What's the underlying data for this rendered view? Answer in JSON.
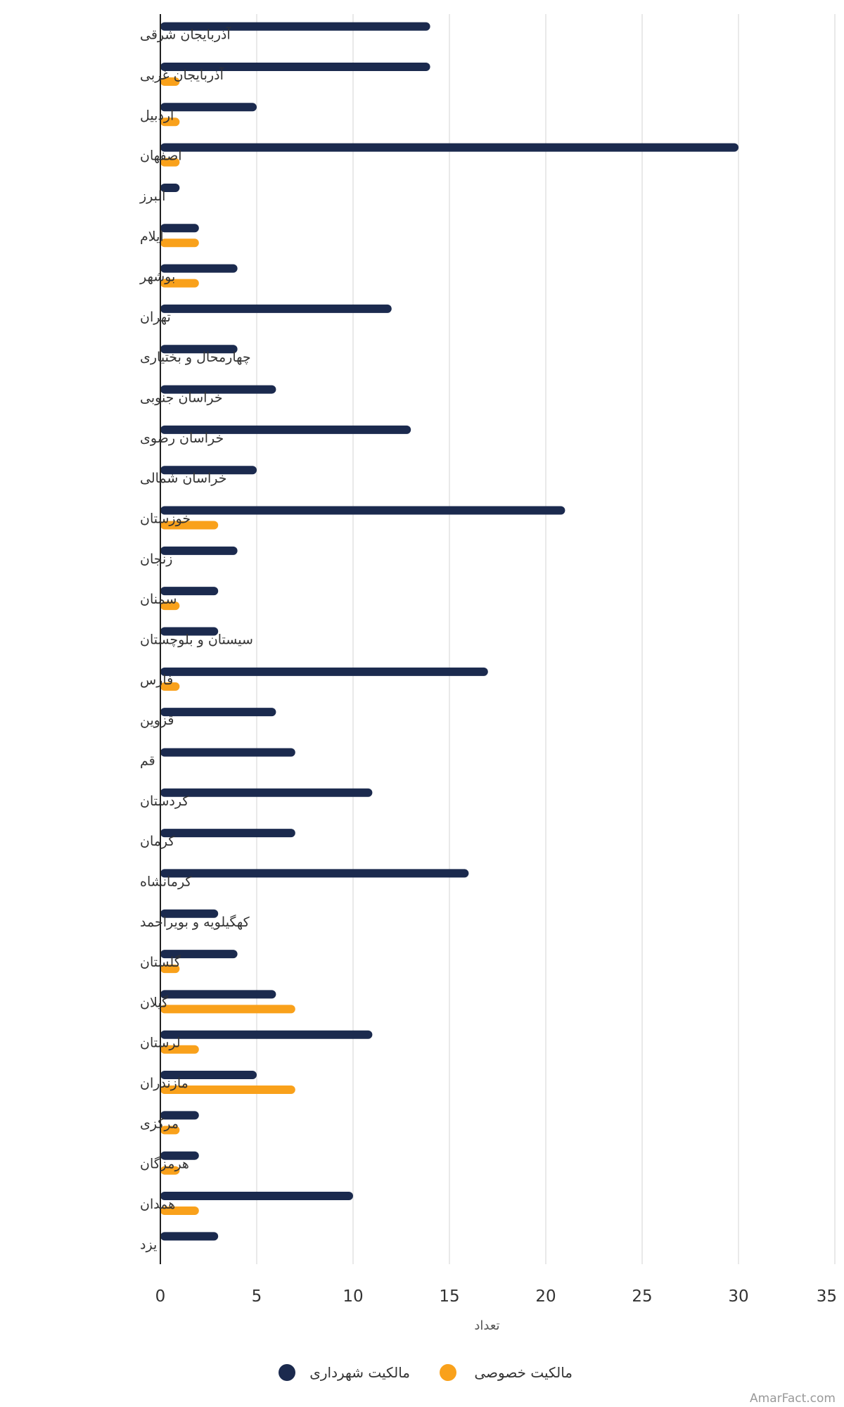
{
  "chart_data": {
    "type": "bar",
    "orientation": "horizontal",
    "categories": [
      "آذربایجان شرقی",
      "آذربایجان غربی",
      "اردبیل",
      "اصفهان",
      "البرز",
      "ایلام",
      "بوشهر",
      "تهران",
      "چهارمحال و بختیاری",
      "خراسان جنوبی",
      "خراسان رضوی",
      "خراسان شمالی",
      "خوزستان",
      "زنجان",
      "سمنان",
      "سیستان و بلوچستان",
      "فارس",
      "قزوین",
      "قم",
      "کردستان",
      "کرمان",
      "کرمانشاه",
      "کهگیلویه و بویراحمد",
      "گلستان",
      "گیلان",
      "لرستان",
      "مازندران",
      "مرکزی",
      "هرمزگان",
      "همدان",
      "یزد"
    ],
    "series": [
      {
        "name": "مالکیت شهرداری",
        "color": "#1b2a4e",
        "values": [
          14,
          14,
          5,
          30,
          1,
          2,
          4,
          12,
          4,
          6,
          13,
          5,
          21,
          4,
          3,
          3,
          17,
          6,
          7,
          11,
          7,
          16,
          3,
          4,
          6,
          11,
          5,
          2,
          2,
          10,
          3
        ]
      },
      {
        "name": "مالکیت خصوصی",
        "color": "#f9a11b",
        "values": [
          0,
          1,
          1,
          1,
          0,
          2,
          2,
          0,
          0,
          0,
          0,
          0,
          3,
          0,
          1,
          0,
          1,
          0,
          0,
          0,
          0,
          0,
          0,
          1,
          7,
          2,
          7,
          1,
          1,
          2,
          0
        ]
      }
    ],
    "xlabel": "تعداد",
    "xlim": [
      0,
      35
    ],
    "xticks": [
      0,
      5,
      10,
      15,
      20,
      25,
      30,
      35
    ],
    "grid": true,
    "legend": "bottom-center"
  },
  "credit": "AmarFact.com"
}
